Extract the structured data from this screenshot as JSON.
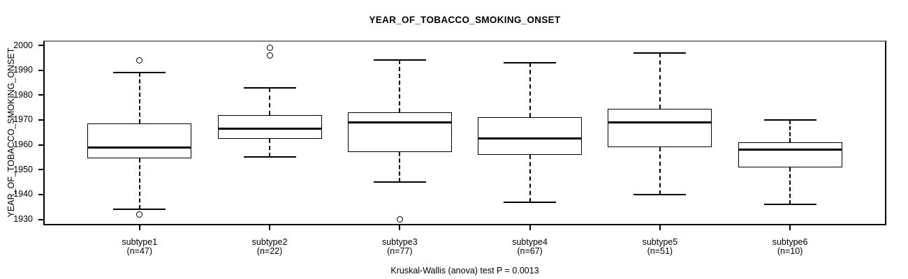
{
  "chart_data": {
    "type": "boxplot",
    "title": "YEAR_OF_TOBACCO_SMOKING_ONSET",
    "ylabel": "YEAR_OF_TOBACCO_SMOKING_ONSET",
    "caption": "Kruskal-Wallis (anova) test P = 0.0013",
    "y_ticks": [
      1930,
      1940,
      1950,
      1960,
      1970,
      1980,
      1990,
      2000
    ],
    "ylim": [
      1927,
      2002
    ],
    "grid": false,
    "orientation": "vertical",
    "groups": [
      {
        "label": "subtype1",
        "n_label": "(n=47)",
        "whisker_low": 1934,
        "q1": 1954.5,
        "median": 1959,
        "q3": 1968.5,
        "whisker_high": 1989,
        "outliers": [
          1932,
          1994
        ]
      },
      {
        "label": "subtype2",
        "n_label": "(n=22)",
        "whisker_low": 1955,
        "q1": 1962.5,
        "median": 1966.5,
        "q3": 1972,
        "whisker_high": 1983,
        "outliers": [
          1996,
          1999
        ]
      },
      {
        "label": "subtype3",
        "n_label": "(n=77)",
        "whisker_low": 1945,
        "q1": 1957,
        "median": 1969,
        "q3": 1973,
        "whisker_high": 1994,
        "outliers": [
          1930
        ]
      },
      {
        "label": "subtype4",
        "n_label": "(n=67)",
        "whisker_low": 1937,
        "q1": 1956,
        "median": 1962.5,
        "q3": 1971,
        "whisker_high": 1993,
        "outliers": []
      },
      {
        "label": "subtype5",
        "n_label": "(n=51)",
        "whisker_low": 1940,
        "q1": 1959,
        "median": 1969,
        "q3": 1974.5,
        "whisker_high": 1997,
        "outliers": []
      },
      {
        "label": "subtype6",
        "n_label": "(n=10)",
        "whisker_low": 1936,
        "q1": 1951,
        "median": 1958,
        "q3": 1961,
        "whisker_high": 1970,
        "outliers": []
      }
    ],
    "colors": {
      "stroke": "#000000",
      "median": "#000000",
      "plot_border_top": "#848484",
      "background": "#ffffff"
    }
  }
}
